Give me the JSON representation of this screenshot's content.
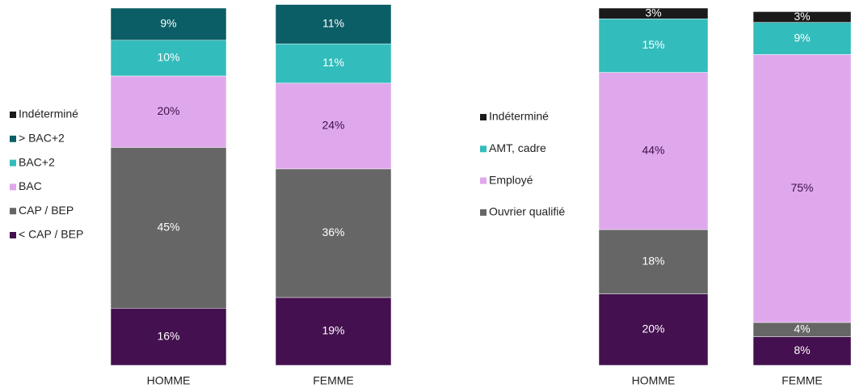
{
  "chart_data": [
    {
      "type": "stacked_bar",
      "categories": [
        "HOMME",
        "FEMME"
      ],
      "ylim": [
        0,
        100
      ],
      "series": [
        {
          "name": "< CAP / BEP",
          "color": "#44104f",
          "values": [
            16,
            19
          ],
          "value_labels": [
            "16%",
            "19%"
          ]
        },
        {
          "name": "CAP / BEP",
          "color": "#666666",
          "values": [
            45,
            36
          ],
          "value_labels": [
            "45%",
            "36%"
          ]
        },
        {
          "name": "BAC",
          "color": "#e0a8ec",
          "values": [
            20,
            24
          ],
          "value_labels": [
            "20%",
            "24%"
          ]
        },
        {
          "name": "BAC+2",
          "color": "#33bcbc",
          "values": [
            10,
            11
          ],
          "value_labels": [
            "10%",
            "11%"
          ]
        },
        {
          "name": "> BAC+2",
          "color": "#0b5e66",
          "values": [
            9,
            11
          ],
          "value_labels": [
            "9%",
            "11%"
          ]
        },
        {
          "name": "Indéterminé",
          "color": "#1a1a1a",
          "values": [
            0,
            0
          ]
        }
      ]
    },
    {
      "type": "stacked_bar",
      "categories": [
        "HOMME",
        "FEMME"
      ],
      "ylim": [
        0,
        100
      ],
      "series": [
        {
          "color": "#44104f",
          "values": [
            20,
            8
          ],
          "value_labels": [
            "20%",
            "8%"
          ]
        },
        {
          "name": "Ouvrier qualifié",
          "color": "#666666",
          "values": [
            18,
            4
          ],
          "value_labels": [
            "18%",
            "4%"
          ]
        },
        {
          "name": "Employé",
          "color": "#e0a8ec",
          "values": [
            44,
            75
          ],
          "value_labels": [
            "44%",
            "75%"
          ]
        },
        {
          "name": "AMT, cadre",
          "color": "#33bcbc",
          "values": [
            15,
            9
          ],
          "value_labels": [
            "15%",
            "9%"
          ]
        },
        {
          "name": "Indéterminé",
          "color": "#1a1a1a",
          "values": [
            3,
            3
          ],
          "value_labels": [
            "3%",
            "3%"
          ]
        }
      ]
    }
  ]
}
